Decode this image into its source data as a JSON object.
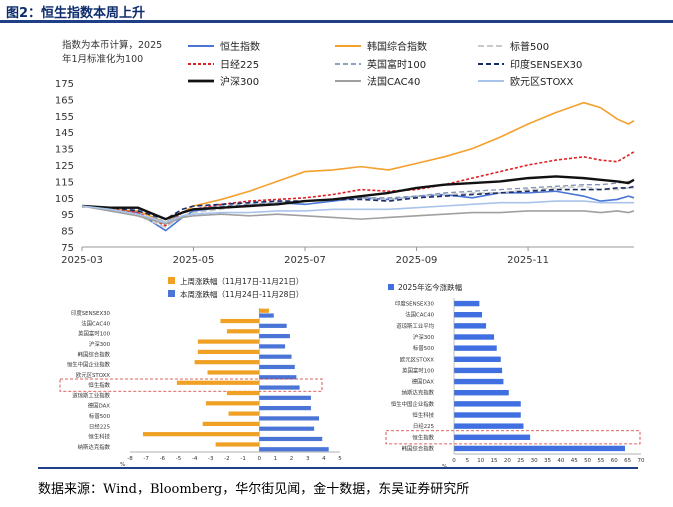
{
  "figure": {
    "title": "图2：恒生指数本周上升",
    "source": "数据来源：Wind，Bloomberg，华尔街见闻，金十数据，东吴证券研究所"
  },
  "chart_data": [
    {
      "type": "line",
      "title": "",
      "ylabel": "指数为本币计算，2025年1月标准化为100",
      "ylabel_lines": [
        "指数为本币计算，2025",
        "年1月标准化为100"
      ],
      "ylim": [
        75,
        175
      ],
      "yticks": [
        75,
        85,
        95,
        105,
        115,
        125,
        135,
        145,
        155,
        165,
        175
      ],
      "xlim": [
        0,
        9.9
      ],
      "x_ticks": [
        {
          "x": 0,
          "label": "2025-03"
        },
        {
          "x": 2,
          "label": "2025-05"
        },
        {
          "x": 4,
          "label": "2025-07"
        },
        {
          "x": 6,
          "label": "2025-09"
        },
        {
          "x": 8,
          "label": "2025-11"
        }
      ],
      "x": [
        0,
        0.5,
        1,
        1.5,
        1.8,
        2,
        2.5,
        3,
        3.5,
        4,
        4.5,
        5,
        5.5,
        6,
        6.5,
        7,
        7.5,
        8,
        8.5,
        9,
        9.3,
        9.6,
        9.8,
        9.9
      ],
      "series": [
        {
          "name": "恒生指数",
          "color": "#4a74d6",
          "dash": "",
          "width": 1.6,
          "values": [
            100,
            98,
            96,
            85,
            93,
            97,
            99,
            100,
            102,
            101,
            103,
            105,
            104,
            106,
            107,
            105,
            108,
            108,
            109,
            106,
            103,
            104,
            106,
            105
          ]
        },
        {
          "name": "韩国综合指数",
          "color": "#f5a02c",
          "dash": "",
          "width": 1.6,
          "values": [
            100,
            98,
            97,
            90,
            96,
            100,
            104,
            109,
            115,
            121,
            122,
            124,
            122,
            126,
            130,
            135,
            142,
            150,
            157,
            163,
            160,
            153,
            150,
            152
          ]
        },
        {
          "name": "标普500",
          "color": "#c9c9c9",
          "dash": "6,3",
          "width": 1.5,
          "values": [
            100,
            97,
            94,
            87,
            94,
            96,
            98,
            101,
            102,
            103,
            104,
            105,
            104,
            106,
            107,
            108,
            108,
            110,
            111,
            112,
            110,
            110,
            111,
            111
          ]
        },
        {
          "name": "日经225",
          "color": "#e02020",
          "dash": "3,2",
          "width": 1.6,
          "values": [
            100,
            98,
            96,
            88,
            96,
            98,
            101,
            103,
            104,
            105,
            107,
            110,
            109,
            110,
            113,
            117,
            121,
            125,
            128,
            130,
            128,
            127,
            131,
            133
          ]
        },
        {
          "name": "英国富时100",
          "color": "#8093b8",
          "dash": "5,3",
          "width": 1.3,
          "values": [
            100,
            99,
            98,
            90,
            96,
            98,
            100,
            101,
            102,
            103,
            104,
            105,
            105,
            106,
            108,
            109,
            110,
            111,
            112,
            113,
            113,
            114,
            115,
            115
          ]
        },
        {
          "name": "印度SENSEX30",
          "color": "#1a2c66",
          "dash": "5,3",
          "width": 1.6,
          "values": [
            100,
            99,
            97,
            92,
            98,
            100,
            101,
            102,
            103,
            103,
            104,
            104,
            103,
            105,
            106,
            107,
            108,
            109,
            110,
            110,
            110,
            111,
            111,
            112
          ]
        },
        {
          "name": "沪深300",
          "color": "#111111",
          "dash": "",
          "width": 2.4,
          "values": [
            100,
            99,
            99,
            92,
            96,
            98,
            99,
            100,
            101,
            103,
            104,
            106,
            108,
            111,
            113,
            114,
            115,
            117,
            118,
            117,
            116,
            115,
            114,
            116
          ]
        },
        {
          "name": "法国CAC40",
          "color": "#a0a0a0",
          "dash": "",
          "width": 1.6,
          "values": [
            100,
            97,
            94,
            89,
            93,
            94,
            95,
            94,
            95,
            94,
            93,
            92,
            93,
            94,
            95,
            96,
            96,
            97,
            97,
            97,
            96,
            97,
            96,
            97
          ]
        },
        {
          "name": "欧元区STOXX",
          "color": "#a8c4ea",
          "dash": "",
          "width": 1.6,
          "values": [
            100,
            98,
            95,
            90,
            94,
            95,
            96,
            96,
            97,
            97,
            98,
            98,
            98,
            99,
            100,
            101,
            102,
            102,
            103,
            103,
            102,
            102,
            102,
            102
          ]
        }
      ]
    },
    {
      "type": "bar",
      "orientation": "horizontal",
      "xlim": [
        -8,
        5
      ],
      "xticks": [
        -8,
        -7,
        -6,
        -5,
        -4,
        -3,
        -2,
        -1,
        0,
        1,
        2,
        3,
        4,
        5
      ],
      "xlabel": "%",
      "categories": [
        "印度SENSEX30",
        "法国CAC40",
        "英国富时100",
        "沪深300",
        "韩国综合指数",
        "恒生中国企业指数",
        "欧元区STOXX",
        "恒生指数",
        "道琼斯工业指数",
        "德国DAX",
        "标普500",
        "日经225",
        "恒生科技",
        "纳斯达克指数"
      ],
      "highlight": "恒生指数",
      "series": [
        {
          "name": "上周涨跌幅（11月17日-11月21日）",
          "color": "#f0a022",
          "values": [
            0.6,
            -2.4,
            -2.0,
            -3.8,
            -3.8,
            -4.0,
            -3.2,
            -5.1,
            -2.0,
            -3.3,
            -1.9,
            -3.5,
            -7.2,
            -2.7
          ]
        },
        {
          "name": "本周涨跌幅（11月24日-11月28日）",
          "color": "#4a74d6",
          "values": [
            0.9,
            1.7,
            1.9,
            1.6,
            2.0,
            2.2,
            2.3,
            2.5,
            3.2,
            3.2,
            3.7,
            3.4,
            3.9,
            4.3
          ]
        }
      ]
    },
    {
      "type": "bar",
      "orientation": "horizontal",
      "xlim": [
        0,
        70
      ],
      "xticks": [
        0,
        5,
        10,
        15,
        20,
        25,
        30,
        35,
        40,
        45,
        50,
        55,
        60,
        65,
        70
      ],
      "xlabel": "%",
      "categories": [
        "印度SENSEX30",
        "法国CAC40",
        "道琼斯工业平均",
        "沪深300",
        "标普500",
        "欧元区STOXX",
        "英国富时100",
        "德国DAX",
        "纳斯达克指数",
        "恒生中国企业指数",
        "恒生科技",
        "日经225",
        "恒生指数",
        "韩国综合指数"
      ],
      "highlight": "恒生指数",
      "series": [
        {
          "name": "2025年迄今涨跌幅",
          "color": "#3f6fe0",
          "values": [
            9.5,
            10.5,
            12,
            15,
            16,
            17.5,
            18,
            18.5,
            20.5,
            25,
            25,
            26,
            28.5,
            64
          ]
        }
      ]
    }
  ]
}
